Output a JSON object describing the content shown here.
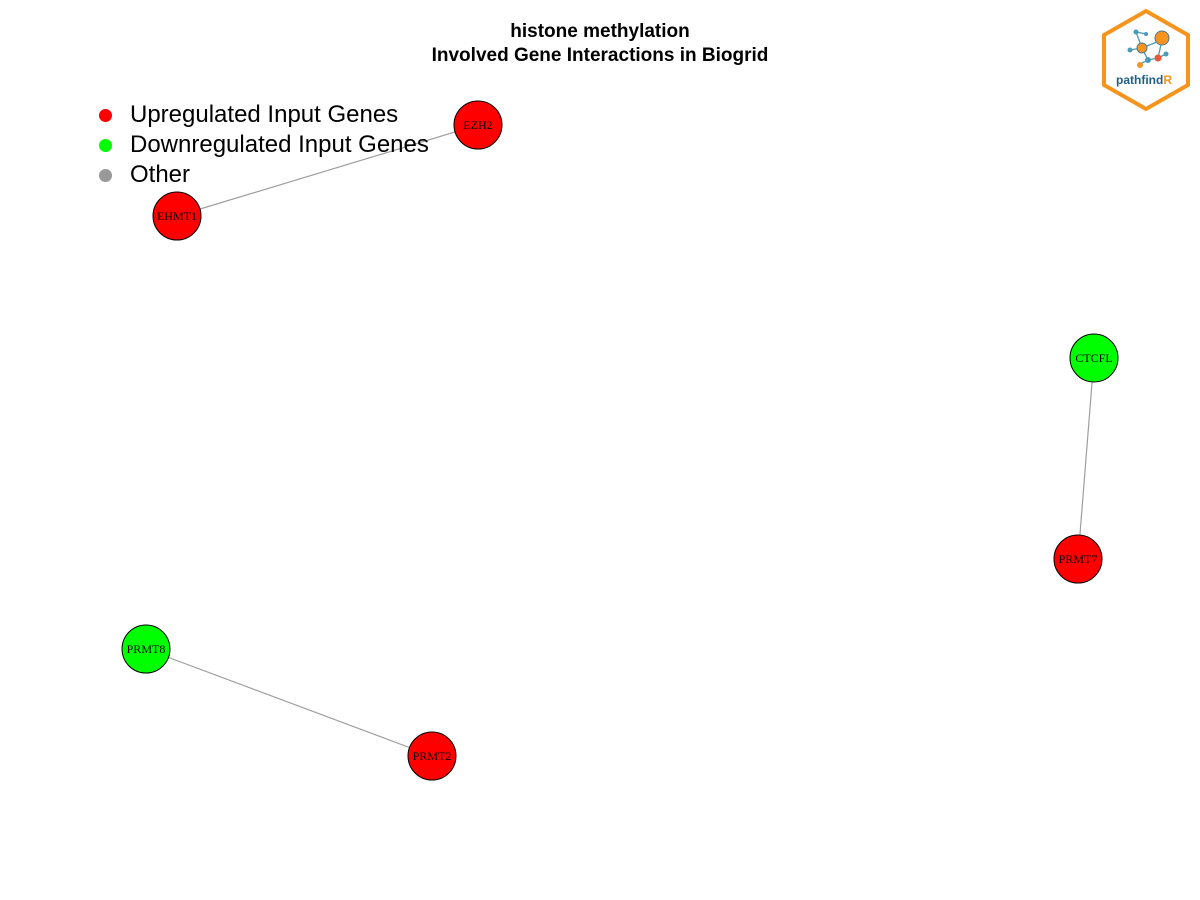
{
  "title": {
    "line1": "histone methylation",
    "line2": "Involved Gene Interactions in Biogrid"
  },
  "legend": {
    "items": [
      {
        "label": "Upregulated Input Genes",
        "color": "#ff0000"
      },
      {
        "label": "Downregulated Input Genes",
        "color": "#00ff00"
      },
      {
        "label": "Other",
        "color": "#999999"
      }
    ]
  },
  "colors": {
    "upregulated": "#ff0000",
    "downregulated": "#00ff00",
    "edge": "#9e9e9e",
    "node_border": "#000000"
  },
  "network": {
    "nodes": [
      {
        "id": "EZH2",
        "label": "EZH2",
        "status": "upregulated"
      },
      {
        "id": "EHMT1",
        "label": "EHMT1",
        "status": "upregulated"
      },
      {
        "id": "CTCFL",
        "label": "CTCFL",
        "status": "downregulated"
      },
      {
        "id": "PRMT7",
        "label": "PRMT7",
        "status": "upregulated"
      },
      {
        "id": "PRMT8",
        "label": "PRMT8",
        "status": "downregulated"
      },
      {
        "id": "PRMT2",
        "label": "PRMT2",
        "status": "upregulated"
      }
    ],
    "edges": [
      {
        "source": "EZH2",
        "target": "EHMT1"
      },
      {
        "source": "CTCFL",
        "target": "PRMT7"
      },
      {
        "source": "PRMT8",
        "target": "PRMT2"
      }
    ]
  },
  "logo": {
    "text_main": "pathfind",
    "text_accent": "R",
    "icon": "pathfindr-hexagon-logo"
  }
}
